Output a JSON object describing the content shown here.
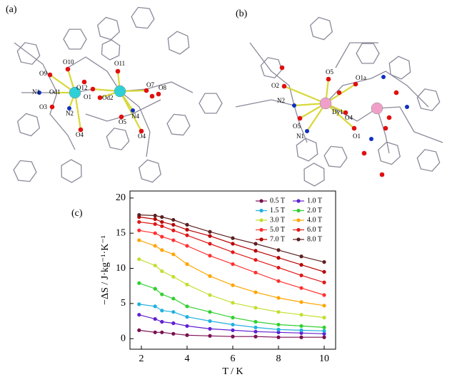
{
  "panels": [
    {
      "label": "(a)",
      "atoms": [
        "O9",
        "O10",
        "O11",
        "N1",
        "Od1",
        "O12",
        "O1",
        "Od2",
        "O7",
        "O8",
        "O3",
        "N2",
        "N4",
        "O5",
        "O4",
        "O4"
      ]
    },
    {
      "label": "(b)",
      "atoms": [
        "O2",
        "O5",
        "O1a",
        "N2",
        "Dy1",
        "O5",
        "O4",
        "N1",
        "O1"
      ]
    },
    {
      "label": "(c)"
    }
  ],
  "chart_data": {
    "type": "line",
    "x_label": "T / K",
    "y_label": "−ΔS / J·kg⁻¹·K⁻¹",
    "x": [
      1.9,
      2.6,
      2.9,
      3.4,
      4,
      5,
      6,
      7,
      8,
      9,
      10
    ],
    "xlim": [
      1.5,
      10.5
    ],
    "ylim": [
      -1.5,
      21
    ],
    "xticks": [
      2,
      4,
      6,
      8,
      10
    ],
    "yticks": [
      0,
      5,
      10,
      15,
      20
    ],
    "grid": false,
    "legend": "upper right",
    "series": [
      {
        "name": "0.5 T",
        "color": "#7a1050",
        "values": [
          1.2,
          0.9,
          0.9,
          0.7,
          0.5,
          0.4,
          0.3,
          0.3,
          0.2,
          0.2,
          0.2
        ]
      },
      {
        "name": "1.0 T",
        "color": "#6020d0",
        "values": [
          3.4,
          2.8,
          2.4,
          2.2,
          1.8,
          1.4,
          1.2,
          1.0,
          0.9,
          0.8,
          0.7
        ]
      },
      {
        "name": "1.5 T",
        "color": "#20b0e0",
        "values": [
          4.9,
          4.6,
          4.0,
          3.8,
          3.1,
          2.5,
          2.0,
          1.6,
          1.3,
          1.2,
          1.1
        ]
      },
      {
        "name": "2.0 T",
        "color": "#30d030",
        "values": [
          7.9,
          7.1,
          6.3,
          5.7,
          4.6,
          3.8,
          3.0,
          2.4,
          2.0,
          1.8,
          1.6
        ]
      },
      {
        "name": "3.0 T",
        "color": "#c0e030",
        "values": [
          11.3,
          10.4,
          9.6,
          8.8,
          7.7,
          6.2,
          5.1,
          4.4,
          3.8,
          3.4,
          3.0
        ]
      },
      {
        "name": "4.0 T",
        "color": "#ffa500",
        "values": [
          14.0,
          13.2,
          12.6,
          12.0,
          10.6,
          8.9,
          7.6,
          6.6,
          5.8,
          5.2,
          4.7
        ]
      },
      {
        "name": "5.0 T",
        "color": "#ff3030",
        "values": [
          15.4,
          15.0,
          14.5,
          14.0,
          13.2,
          11.8,
          10.6,
          9.4,
          8.2,
          7.2,
          6.2
        ]
      },
      {
        "name": "6.0 T",
        "color": "#e01818",
        "values": [
          16.6,
          16.3,
          16.0,
          15.4,
          14.7,
          13.5,
          12.3,
          11.2,
          10.1,
          9.0,
          8.0
        ]
      },
      {
        "name": "7.0 T",
        "color": "#b80000",
        "values": [
          17.3,
          17.0,
          16.6,
          16.2,
          15.5,
          14.6,
          13.5,
          12.5,
          11.5,
          10.5,
          9.5
        ]
      },
      {
        "name": "8.0 T",
        "color": "#5a2020",
        "values": [
          17.6,
          17.5,
          17.3,
          16.9,
          16.2,
          15.2,
          14.3,
          13.5,
          12.6,
          11.7,
          10.9
        ]
      }
    ]
  }
}
